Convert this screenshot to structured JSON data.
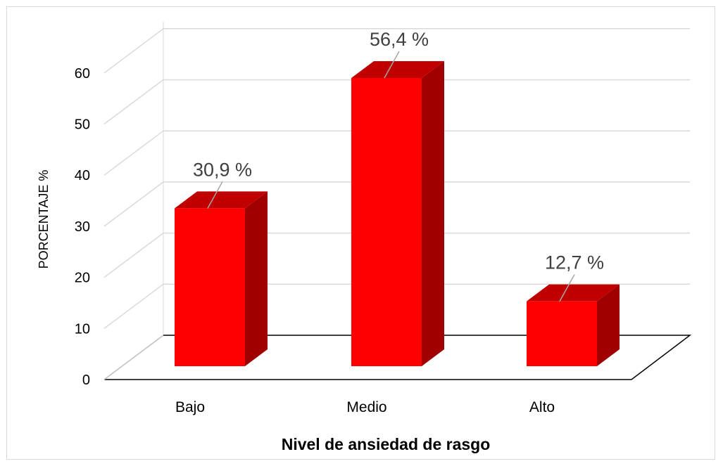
{
  "chart_data": {
    "type": "bar",
    "style": "3d-column",
    "categories": [
      "Bajo",
      "Medio",
      "Alto"
    ],
    "values": [
      30.9,
      56.4,
      12.7
    ],
    "data_labels": [
      "30,9 %",
      "56,4 %",
      "12,7 %"
    ],
    "xlabel": "Nivel de ansiedad de rasgo",
    "ylabel": "PORCENTAJE %",
    "ylim": [
      0,
      60
    ],
    "yticks": [
      "0",
      "10",
      "20",
      "30",
      "40",
      "50",
      "60"
    ],
    "grid": true,
    "legend": "none",
    "colors": {
      "bar_front": "#ff0000",
      "bar_top": "#c00000",
      "bar_side": "#a00000",
      "grid": "#d9d9d9",
      "floor": "#000000",
      "leader": "#a6a6a6"
    }
  }
}
